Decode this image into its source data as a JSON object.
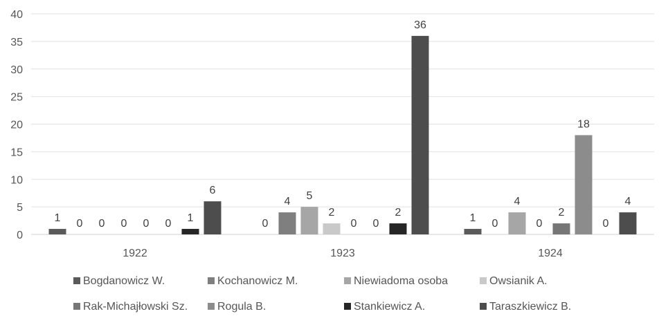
{
  "chart_data": {
    "type": "bar",
    "categories": [
      "1922",
      "1923",
      "1924"
    ],
    "series": [
      {
        "name": "Bogdanowicz W.",
        "values": [
          1,
          0,
          1
        ],
        "color": "#5a5a5a"
      },
      {
        "name": "Kochanowicz M.",
        "values": [
          0,
          4,
          0
        ],
        "color": "#7f7f7f"
      },
      {
        "name": "Niewiadoma osoba",
        "values": [
          0,
          5,
          4
        ],
        "color": "#a6a6a6"
      },
      {
        "name": "Owsianik A.",
        "values": [
          0,
          2,
          0
        ],
        "color": "#c9c9c9"
      },
      {
        "name": "Rak-Michajłowski Sz.",
        "values": [
          0,
          0,
          2
        ],
        "color": "#767676"
      },
      {
        "name": "Rogula B.",
        "values": [
          0,
          0,
          18
        ],
        "color": "#8c8c8c"
      },
      {
        "name": "Stankiewicz A.",
        "values": [
          1,
          2,
          0
        ],
        "color": "#262626"
      },
      {
        "name": "Taraszkiewicz B.",
        "values": [
          6,
          36,
          4
        ],
        "color": "#4d4d4d"
      }
    ],
    "yticks": [
      "0",
      "5",
      "10",
      "15",
      "20",
      "25",
      "30",
      "35",
      "40"
    ],
    "ylim": [
      0,
      40
    ],
    "grid": true,
    "legend_position": "bottom"
  }
}
